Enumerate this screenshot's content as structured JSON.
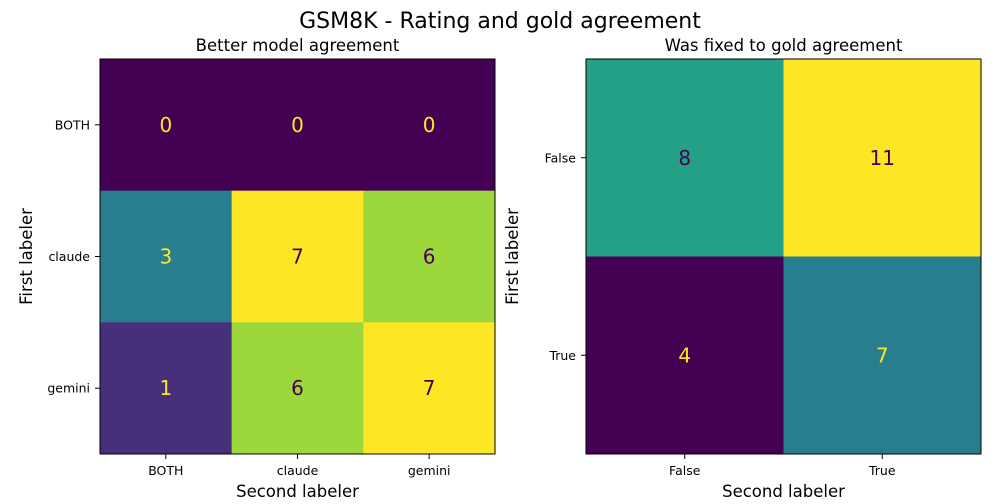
{
  "figure_title": "GSM8K - Rating and gold agreement",
  "colors": {
    "low_text": "#fde725",
    "high_text": "#440154",
    "axis": "#000000"
  },
  "chart_data": [
    {
      "type": "heatmap",
      "title": "Better model agreement",
      "xlabel": "Second labeler",
      "ylabel": "First labeler",
      "x_categories": [
        "BOTH",
        "claude",
        "gemini"
      ],
      "y_categories": [
        "BOTH",
        "claude",
        "gemini"
      ],
      "values": [
        [
          0,
          0,
          0
        ],
        [
          3,
          7,
          6
        ],
        [
          1,
          6,
          7
        ]
      ],
      "colormap": "viridis",
      "vmin": 0,
      "vmax": 7
    },
    {
      "type": "heatmap",
      "title": "Was fixed to gold agreement",
      "xlabel": "Second labeler",
      "ylabel": "First labeler",
      "x_categories": [
        "False",
        "True"
      ],
      "y_categories": [
        "False",
        "True"
      ],
      "values": [
        [
          8,
          11
        ],
        [
          4,
          7
        ]
      ],
      "colormap": "viridis",
      "vmin": 4,
      "vmax": 11
    }
  ]
}
